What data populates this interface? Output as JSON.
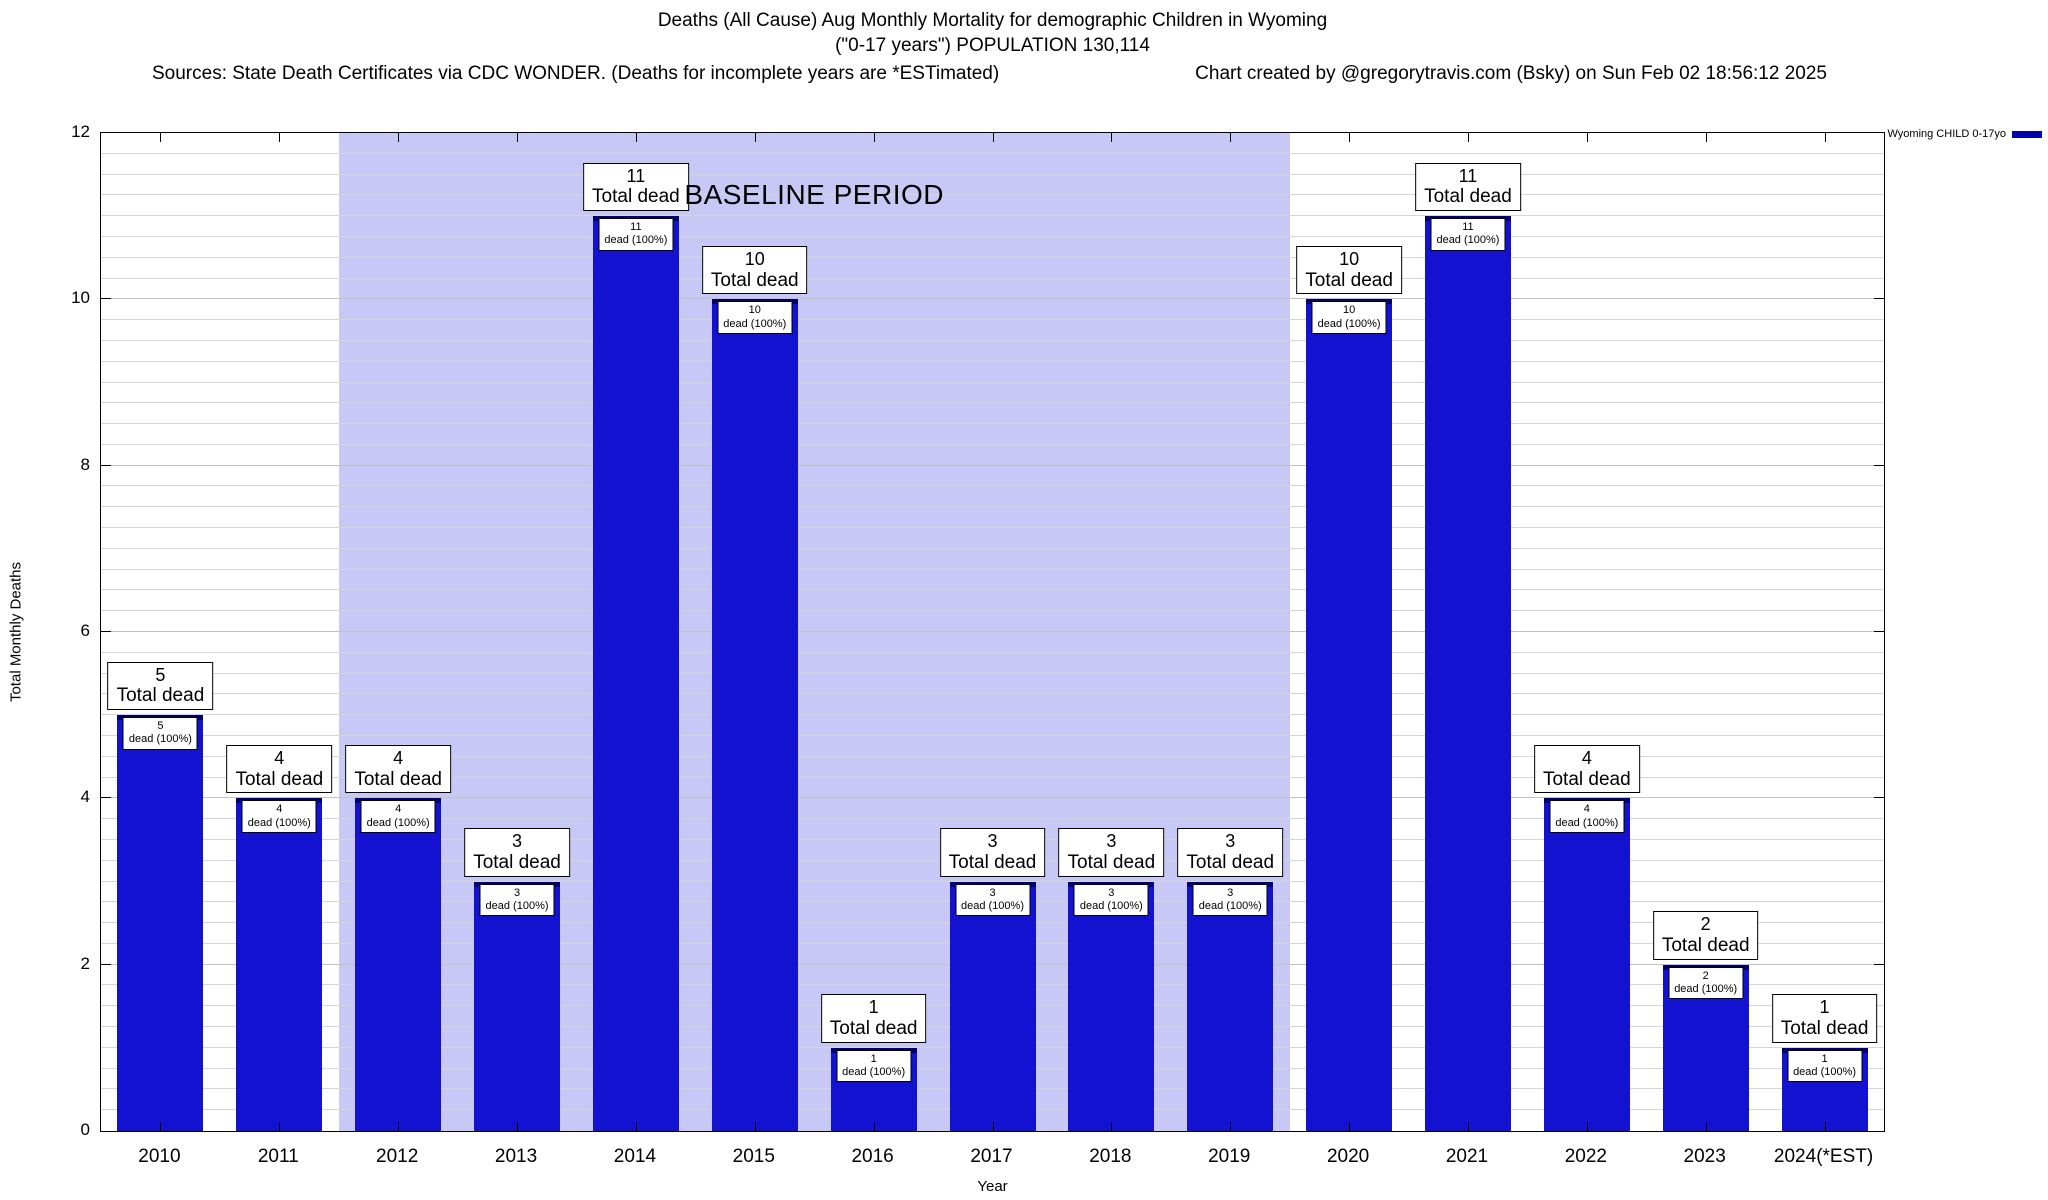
{
  "header": {
    "sources": "Sources: State Death Certificates via CDC WONDER. (Deaths for incomplete years are *ESTimated)",
    "credit": "Chart created by @gregorytravis.com (Bsky) on Sun Feb 02 18:56:12 2025"
  },
  "legend": {
    "label": "Wyoming CHILD 0-17yo",
    "color": "#0000aa"
  },
  "chart_data": {
    "type": "bar",
    "title": "Deaths (All Cause) Aug Monthly Mortality for demographic Children in Wyoming",
    "subtitle": "(\"0-17 years\") POPULATION 130,114",
    "categories": [
      "2010",
      "2011",
      "2012",
      "2013",
      "2014",
      "2015",
      "2016",
      "2017",
      "2018",
      "2019",
      "2020",
      "2021",
      "2022",
      "2023",
      "2024(*EST)"
    ],
    "values": [
      5,
      4,
      4,
      3,
      11,
      10,
      1,
      3,
      3,
      3,
      10,
      11,
      4,
      2,
      1
    ],
    "bar_box_label": "Total dead",
    "bar_inner_label": "dead (100%)",
    "xlabel": "Year",
    "ylabel": "Total Monthly Deaths",
    "ylim": [
      0,
      12
    ],
    "yticks": [
      0,
      2,
      4,
      6,
      8,
      10,
      12
    ],
    "ytick_step": 2,
    "minor_grid_step": 0.25,
    "grid": true,
    "legend_position": "top-right-outside",
    "bar_color": "#1212d0",
    "bar_cap_color": "#00006e",
    "baseline": {
      "label": "BASELINE PERIOD",
      "start_category": "2012",
      "end_category": "2019",
      "color": "#c8c8f7"
    }
  }
}
